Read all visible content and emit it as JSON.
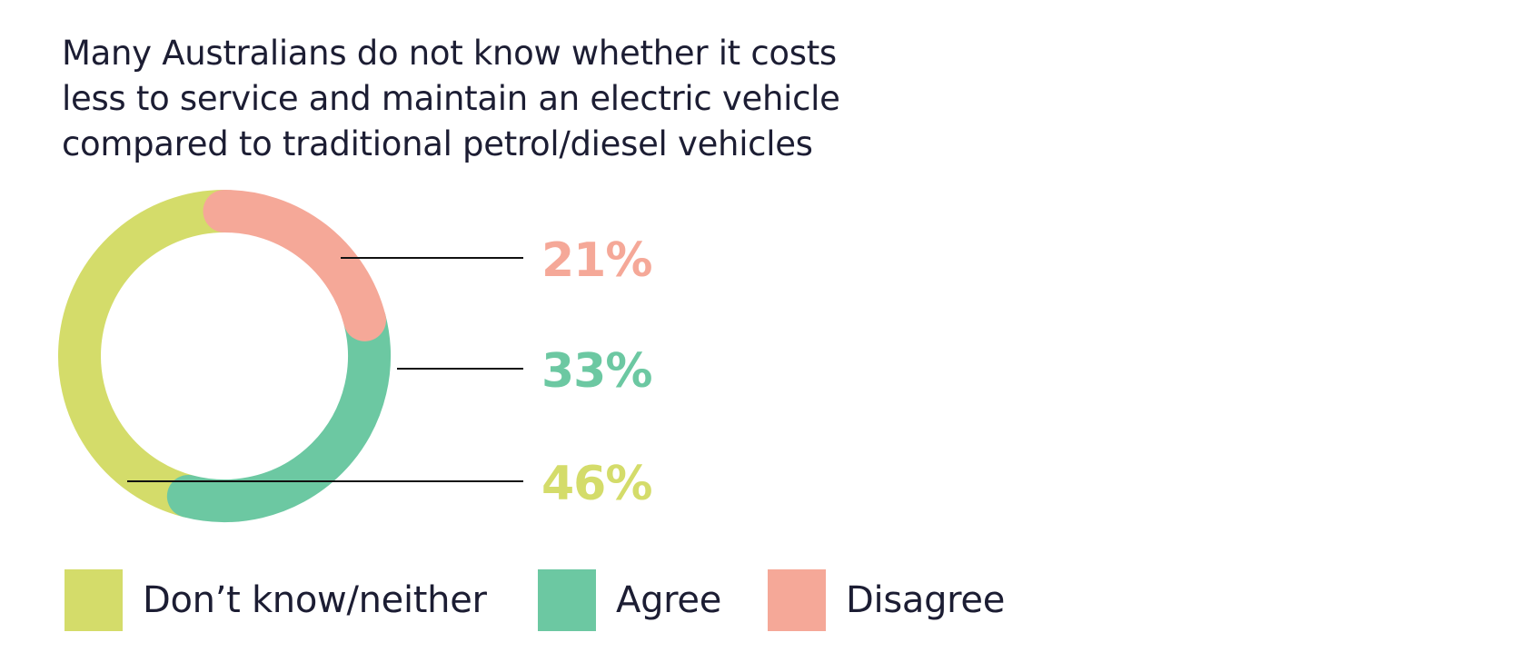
{
  "title_lines": [
    "Many Australians do not know whether it costs",
    "less to service and maintain an electric vehicle",
    "compared to traditional petrol/diesel vehicles"
  ],
  "chart_data": {
    "type": "pie",
    "variant": "donut",
    "title": "Many Australians do not know whether it costs less to service and maintain an electric vehicle compared to traditional petrol/diesel vehicles",
    "categories": [
      "Disagree",
      "Agree",
      "Don’t know/neither"
    ],
    "values": [
      21,
      33,
      46
    ],
    "labels": [
      "21%",
      "33%",
      "46%"
    ],
    "colors": [
      "#f5a898",
      "#6cc8a2",
      "#d4dc6a"
    ],
    "legend_order": [
      "Don’t know/neither",
      "Agree",
      "Disagree"
    ],
    "legend_colors": [
      "#d4dc6a",
      "#6cc8a2",
      "#f5a898"
    ],
    "legend_position": "bottom-left"
  }
}
